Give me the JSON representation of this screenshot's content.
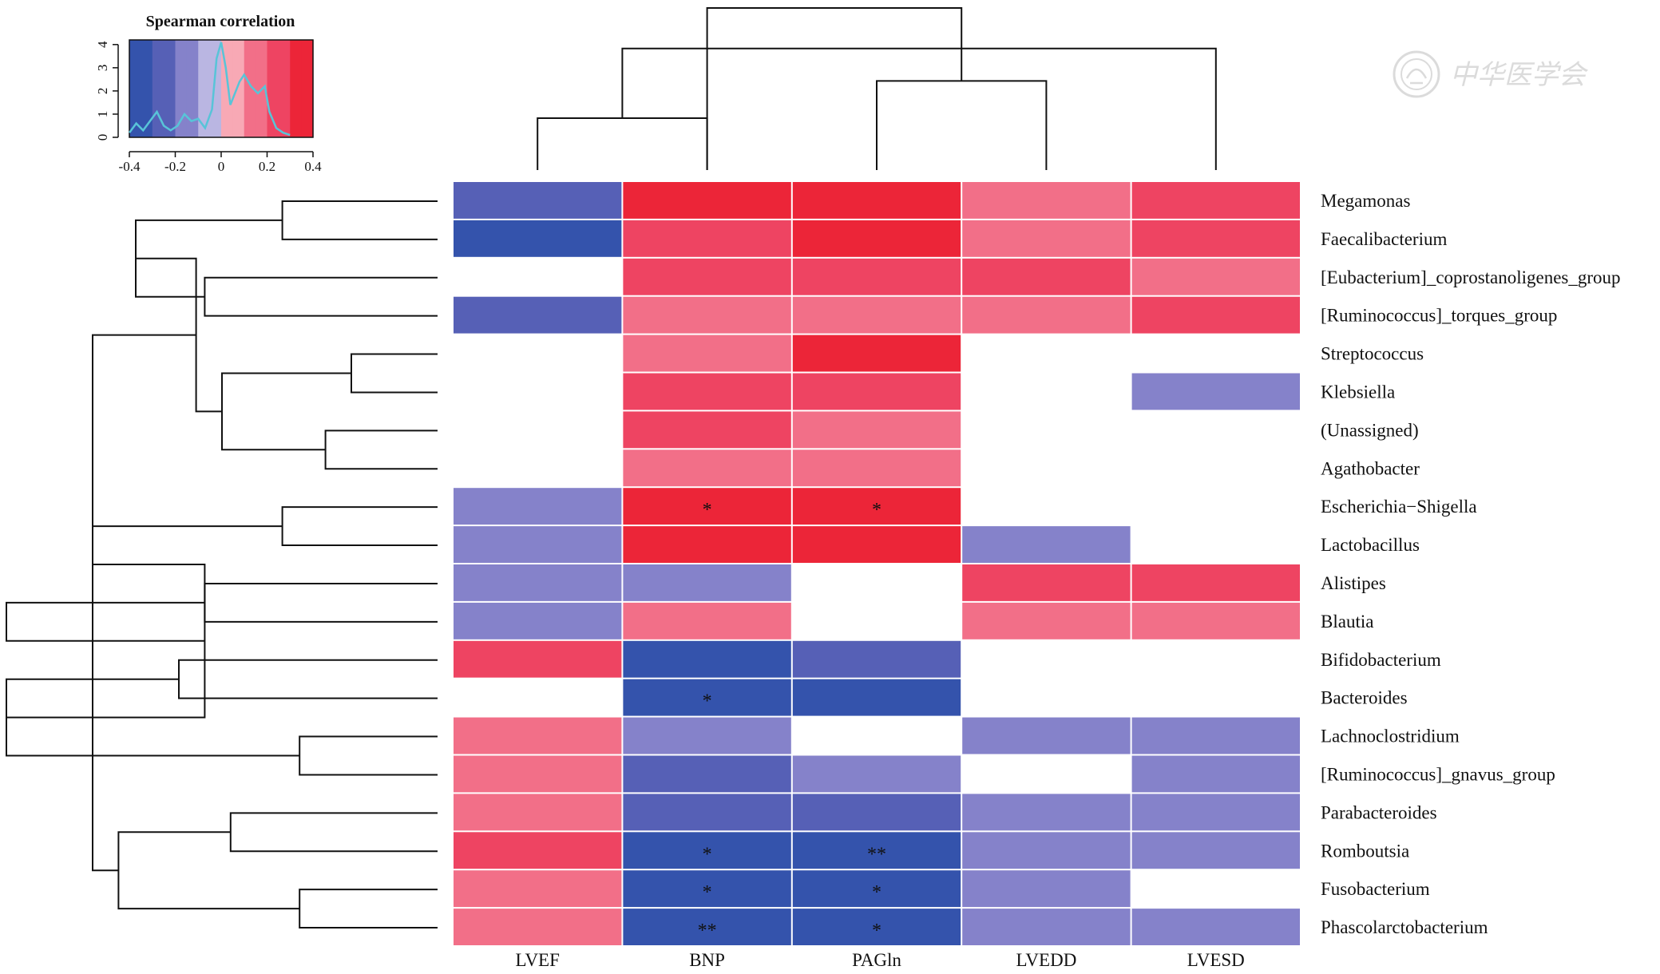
{
  "chart_data": {
    "type": "heatmap",
    "title": "",
    "legend": {
      "title": "Spearman correlation",
      "tick_labels": [
        "-0.4",
        "-0.2",
        "0",
        "0.2",
        "0.4"
      ],
      "range": [
        -0.4,
        0.4
      ],
      "count_ticks": [
        "0",
        "1",
        "2",
        "3",
        "4"
      ],
      "count_max": 4,
      "bins": 16,
      "density": [
        [
          -0.4,
          0.2
        ],
        [
          -0.37,
          0.6
        ],
        [
          -0.34,
          0.3
        ],
        [
          -0.31,
          0.7
        ],
        [
          -0.28,
          1.1
        ],
        [
          -0.25,
          0.5
        ],
        [
          -0.22,
          0.3
        ],
        [
          -0.19,
          0.5
        ],
        [
          -0.16,
          1.0
        ],
        [
          -0.13,
          0.7
        ],
        [
          -0.1,
          0.8
        ],
        [
          -0.07,
          0.4
        ],
        [
          -0.04,
          1.2
        ],
        [
          -0.02,
          3.4
        ],
        [
          0.0,
          4.1
        ],
        [
          0.02,
          3.0
        ],
        [
          0.04,
          1.4
        ],
        [
          0.06,
          1.9
        ],
        [
          0.08,
          2.4
        ],
        [
          0.1,
          2.7
        ],
        [
          0.13,
          2.2
        ],
        [
          0.16,
          1.9
        ],
        [
          0.19,
          2.2
        ],
        [
          0.21,
          1.1
        ],
        [
          0.24,
          0.4
        ],
        [
          0.27,
          0.2
        ],
        [
          0.3,
          0.1
        ]
      ],
      "density_color": "#58c4d8"
    },
    "palette": {
      "neg": [
        "#ffffff",
        "#bab6e2",
        "#8582ca",
        "#5660b6",
        "#3453ac"
      ],
      "pos": [
        "#ffffff",
        "#f8a9b5",
        "#f26f88",
        "#ee4462",
        "#ec2538"
      ]
    },
    "columns": [
      "LVEF",
      "BNP",
      "PAGln",
      "LVEDD",
      "LVESD"
    ],
    "rows": [
      "Megamonas",
      "Faecalibacterium",
      "[Eubacterium]_coprostanoligenes_group",
      "[Ruminococcus]_torques_group",
      "Streptococcus",
      "Klebsiella",
      "(Unassigned)",
      "Agathobacter",
      "Escherichia−Shigella",
      "Lactobacillus",
      "Alistipes",
      "Blautia",
      "Bifidobacterium",
      "Bacteroides",
      "Lachnoclostridium",
      "[Ruminococcus]_gnavus_group",
      "Parabacteroides",
      "Romboutsia",
      "Fusobacterium",
      "Phascolarctobacterium"
    ],
    "values": [
      [
        -0.25,
        0.35,
        0.35,
        0.15,
        0.25
      ],
      [
        -0.35,
        0.25,
        0.35,
        0.15,
        0.25
      ],
      [
        0,
        0.25,
        0.25,
        0.25,
        0.15
      ],
      [
        -0.25,
        0.15,
        0.15,
        0.15,
        0.25
      ],
      [
        0,
        0.15,
        0.35,
        0,
        0
      ],
      [
        0,
        0.25,
        0.25,
        0,
        -0.15
      ],
      [
        0,
        0.25,
        0.15,
        0,
        0
      ],
      [
        0,
        0.15,
        0.15,
        0,
        0
      ],
      [
        -0.15,
        0.45,
        0.45,
        0,
        0
      ],
      [
        -0.15,
        0.35,
        0.35,
        -0.15,
        0
      ],
      [
        -0.15,
        -0.15,
        0,
        0.25,
        0.25
      ],
      [
        -0.15,
        0.15,
        0,
        0.15,
        0.15
      ],
      [
        0.25,
        -0.35,
        -0.25,
        0,
        0
      ],
      [
        0,
        -0.45,
        -0.35,
        0,
        0
      ],
      [
        0.15,
        -0.15,
        0,
        -0.15,
        -0.15
      ],
      [
        0.15,
        -0.25,
        -0.15,
        0,
        -0.15
      ],
      [
        0.15,
        -0.25,
        -0.25,
        -0.15,
        -0.15
      ],
      [
        0.25,
        -0.45,
        -0.45,
        -0.15,
        -0.15
      ],
      [
        0.15,
        -0.45,
        -0.45,
        -0.15,
        0
      ],
      [
        0.15,
        -0.45,
        -0.45,
        -0.15,
        -0.15
      ]
    ],
    "significance": [
      [
        "",
        "",
        "",
        "",
        ""
      ],
      [
        "",
        "",
        "",
        "",
        ""
      ],
      [
        "",
        "",
        "",
        "",
        ""
      ],
      [
        "",
        "",
        "",
        "",
        ""
      ],
      [
        "",
        "",
        "",
        "",
        ""
      ],
      [
        "",
        "",
        "",
        "",
        ""
      ],
      [
        "",
        "",
        "",
        "",
        ""
      ],
      [
        "",
        "",
        "",
        "",
        ""
      ],
      [
        "",
        "*",
        "*",
        "",
        ""
      ],
      [
        "",
        "",
        "",
        "",
        ""
      ],
      [
        "",
        "",
        "",
        "",
        ""
      ],
      [
        "",
        "",
        "",
        "",
        ""
      ],
      [
        "",
        "",
        "",
        "",
        ""
      ],
      [
        "",
        "*",
        "",
        "",
        ""
      ],
      [
        "",
        "",
        "",
        "",
        ""
      ],
      [
        "",
        "",
        "",
        "",
        ""
      ],
      [
        "",
        "",
        "",
        "",
        ""
      ],
      [
        "",
        "*",
        "**",
        "",
        ""
      ],
      [
        "",
        "*",
        "*",
        "",
        ""
      ],
      [
        "",
        "**",
        "*",
        "",
        ""
      ]
    ],
    "col_dendrogram": {
      "merges": [
        [
          0,
          1,
          0.32
        ],
        [
          2,
          3,
          0.55
        ],
        [
          4,
          5,
          0.75
        ],
        [
          1,
          6,
          1.0
        ]
      ]
    },
    "row_dendrogram": {
      "merges": [
        [
          0,
          1,
          0.18
        ],
        [
          2,
          3,
          0.27
        ],
        [
          4,
          5,
          0.1
        ],
        [
          6,
          7,
          0.13
        ],
        [
          8,
          9,
          0.18
        ],
        [
          10,
          11,
          0.27
        ],
        [
          12,
          13,
          0.3
        ],
        [
          14,
          15,
          0.16
        ],
        [
          16,
          17,
          0.24
        ],
        [
          18,
          19,
          0.16
        ],
        [
          20,
          21,
          0.35
        ],
        [
          22,
          23,
          0.25
        ],
        [
          24,
          25,
          0.4
        ],
        [
          26,
          27,
          0.5
        ],
        [
          28,
          29,
          0.37
        ],
        [
          30,
          31,
          0.28
        ],
        [
          32,
          33,
          0.27
        ],
        [
          34,
          35,
          0.4
        ],
        [
          36,
          37,
          0.5
        ],
        [
          38,
          39,
          0.5
        ]
      ]
    }
  },
  "watermark": {
    "text": "中华医学会",
    "color": "#9a9a9a"
  }
}
